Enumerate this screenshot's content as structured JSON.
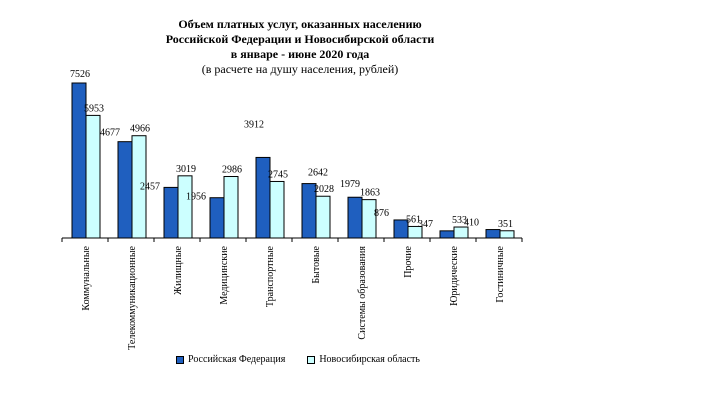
{
  "chart_data": {
    "type": "bar",
    "title": [
      "Объем платных услуг, оказанных населению",
      "Российской Федерации и  Новосибирской области",
      "в январе - июне 2020 года"
    ],
    "subtitle": "(в расчете на душу населения, рублей)",
    "categories": [
      "Коммунальные",
      "Телекоммуникационные",
      "Жилищные",
      "Медицинские",
      "Транспортные",
      "Бытовые",
      "Системы образования",
      "Прочие",
      "Юридические",
      "Гостиничные"
    ],
    "series": [
      {
        "name": "Российская Федерация",
        "color": "#1f5fbf",
        "values": [
          7526,
          4677,
          2457,
          1956,
          3912,
          2642,
          1979,
          876,
          347,
          410
        ]
      },
      {
        "name": "Новосибирская область",
        "color": "#ccffff",
        "values": [
          5953,
          4966,
          3019,
          2986,
          2745,
          2028,
          1863,
          561,
          533,
          351
        ]
      }
    ],
    "ylim": [
      0,
      7526
    ]
  }
}
